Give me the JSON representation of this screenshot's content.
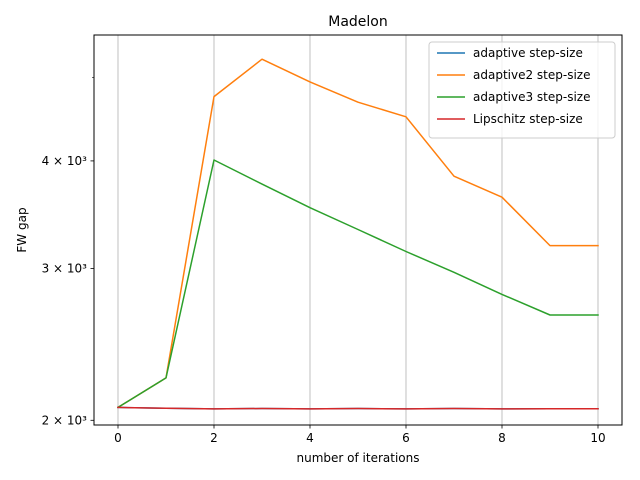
{
  "chart_data": {
    "type": "line",
    "title": "Madelon",
    "xlabel": "number of iterations",
    "ylabel": "FW gap",
    "yscale": "log",
    "x": [
      0,
      1,
      2,
      3,
      4,
      5,
      6,
      7,
      8,
      9,
      10
    ],
    "xlim": [
      -0.5,
      10.5
    ],
    "ylim": [
      1975,
      5600
    ],
    "xticks": [
      "0",
      "2",
      "4",
      "6",
      "8",
      "10"
    ],
    "yticks": [
      {
        "value": 2000,
        "label": "2 × 10³"
      },
      {
        "value": 3000,
        "label": "3 × 10³"
      },
      {
        "value": 4000,
        "label": "4 × 10³"
      }
    ],
    "grid": "x-major",
    "legend_position": "top-right",
    "series": [
      {
        "name": "adaptive step-size",
        "color": "#1f77b4",
        "values": [
          2070,
          2065,
          2062,
          2064,
          2062,
          2064,
          2062,
          2064,
          2062,
          2063,
          2063
        ]
      },
      {
        "name": "adaptive2 step-size",
        "color": "#ff7f0e",
        "values": [
          2070,
          2240,
          4750,
          5250,
          4940,
          4680,
          4500,
          3840,
          3630,
          3190,
          3190
        ]
      },
      {
        "name": "adaptive3 step-size",
        "color": "#2ca02c",
        "values": [
          2070,
          2240,
          4010,
          3760,
          3530,
          3330,
          3140,
          2970,
          2800,
          2650,
          2650
        ]
      },
      {
        "name": "Lipschitz step-size",
        "color": "#d62728",
        "values": [
          2070,
          2065,
          2062,
          2064,
          2062,
          2064,
          2062,
          2064,
          2062,
          2063,
          2063
        ]
      }
    ]
  }
}
